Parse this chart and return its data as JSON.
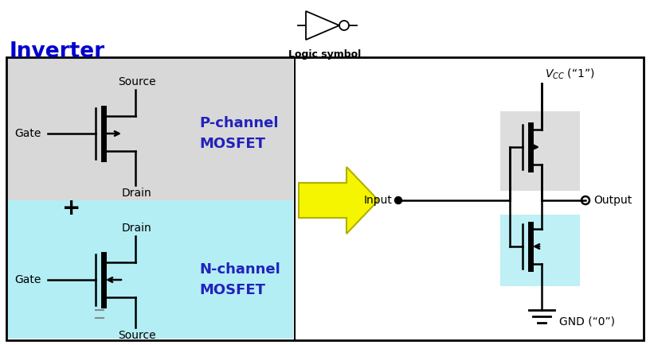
{
  "title": "Inverter",
  "title_color": "#0000CC",
  "logic_symbol_label": "Logic symbol",
  "bg_color": "#ffffff",
  "p_mosfet_bg": "#d8d8d8",
  "n_mosfet_bg": "#b3eef5",
  "p_label": "P-channel\nMOSFET",
  "n_label": "N-channel\nMOSFET",
  "p_label_color": "#2222bb",
  "n_label_color": "#2222bb",
  "gate_label": "Gate",
  "source_label": "Source",
  "drain_label": "Drain",
  "vcc_label": "V",
  "vcc_sub": "CC",
  "vcc_suffix": " (“1”)",
  "gnd_label": "GND (“0”)",
  "input_label": "Input",
  "output_label": "Output",
  "arrow_fill": "#f5f500",
  "arrow_edge": "#b0b000",
  "figw": 8.16,
  "figh": 4.34,
  "dpi": 100
}
